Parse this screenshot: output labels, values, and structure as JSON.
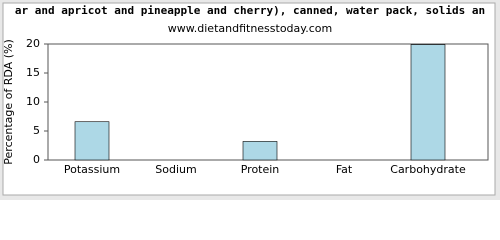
{
  "chart_data": {
    "type": "bar",
    "title": "ar and apricot and pineapple and cherry), canned, water pack, solids an",
    "subtitle": "www.dietandfitnesstoday.com",
    "y_label": "Percentage of RDA (%)",
    "categories": [
      "Potassium",
      "Sodium",
      "Protein",
      "Fat",
      "Carbohydrate"
    ],
    "values": [
      6.6,
      0,
      3.2,
      0,
      19.9
    ],
    "color": "#add8e6",
    "ylim": [
      0,
      20
    ],
    "yticks": [
      0,
      5,
      10,
      15,
      20
    ],
    "grid": false
  }
}
